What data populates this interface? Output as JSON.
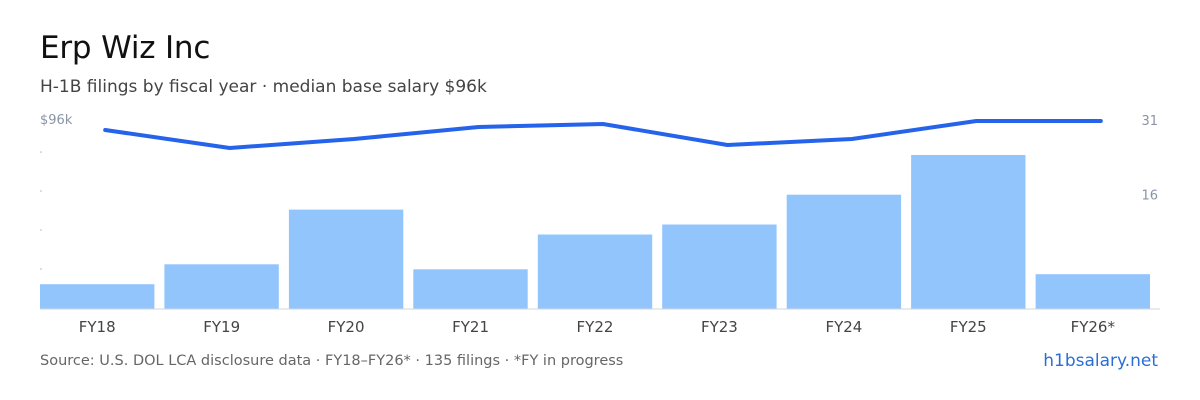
{
  "header": {
    "title": "Erp Wiz Inc",
    "subtitle": "H-1B filings by fiscal year · median base salary $96k"
  },
  "footer": {
    "source": "Source: U.S. DOL LCA disclosure data · FY18–FY26* · 135 filings · *FY in progress",
    "brand": "h1bsalary.net"
  },
  "colors": {
    "bar": "#93c5fd",
    "line": "#2563eb",
    "axis_text": "#444444",
    "scale_text": "#8a94a6",
    "baseline": "#d0d5dd"
  },
  "chart_data": {
    "type": "bar",
    "categories": [
      "FY18",
      "FY19",
      "FY20",
      "FY21",
      "FY22",
      "FY23",
      "FY24",
      "FY25",
      "FY26*"
    ],
    "series": [
      {
        "type": "bar",
        "axis": "right",
        "values": [
          5,
          9,
          20,
          8,
          15,
          17,
          23,
          31,
          7
        ]
      },
      {
        "type": "line",
        "axis": "left",
        "values": [
          93,
          87,
          90,
          94,
          95,
          88,
          90,
          96,
          96
        ]
      }
    ],
    "left_axis": {
      "label": "$96k",
      "value": 96
    },
    "right_axis": {
      "ticks": [
        31,
        16
      ],
      "max": 31
    },
    "grid": false
  }
}
